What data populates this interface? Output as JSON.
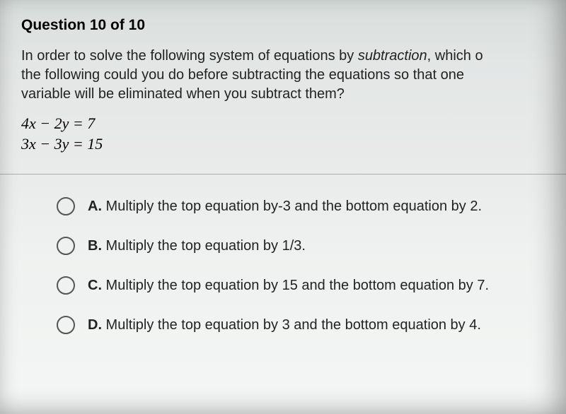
{
  "header": "Question 10 of 10",
  "prompt_part1": "In order to solve the following system of equations by ",
  "prompt_italic": "subtraction",
  "prompt_part2": ", which o",
  "prompt_line2": "the following could you do before subtracting the equations so that one",
  "prompt_line3": "variable will be eliminated when you subtract them?",
  "equation1": "4x − 2y = 7",
  "equation2": "3x − 3y = 15",
  "options": {
    "a": {
      "letter": "A.",
      "text": " Multiply the top equation by-3 and the bottom equation by 2."
    },
    "b": {
      "letter": "B.",
      "text": " Multiply the top equation by 1/3."
    },
    "c": {
      "letter": "C.",
      "text": " Multiply the top equation by 15 and the bottom equation by 7."
    },
    "d": {
      "letter": "D.",
      "text": " Multiply the top equation by 3 and the bottom equation by 4."
    }
  },
  "styling": {
    "background_gradient": [
      "#d8dedc",
      "#e2e6e5",
      "#e8ebea",
      "#eff1f0",
      "#f4f6f5"
    ],
    "header_fontsize": 21,
    "body_fontsize": 20,
    "equation_fontsize": 22,
    "text_color": "#1a1a1a",
    "radio_border_color": "#555",
    "radio_size": 26,
    "divider_color": "#aab0ae"
  }
}
